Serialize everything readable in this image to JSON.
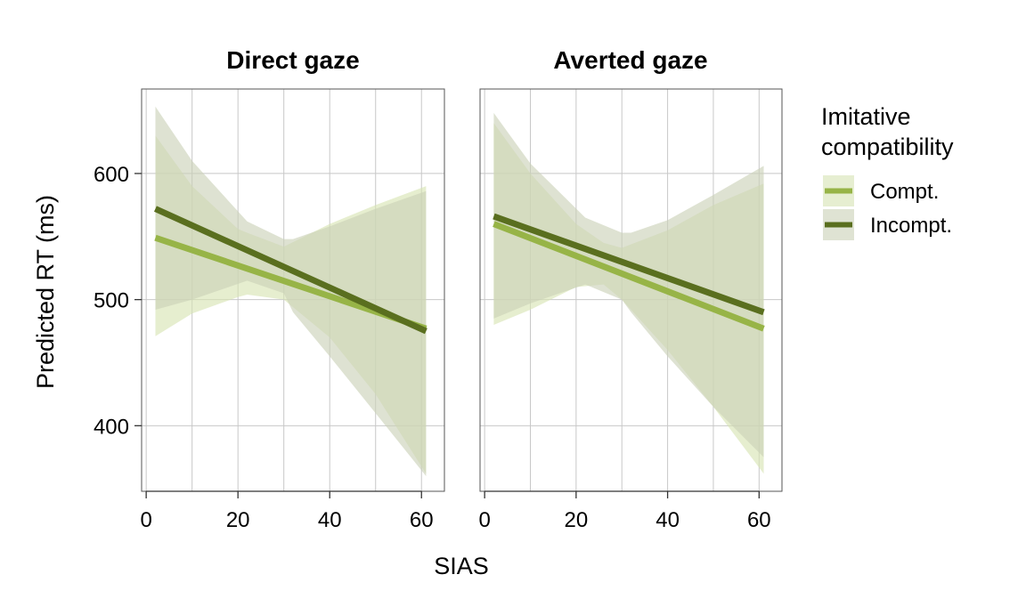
{
  "chart_data": {
    "type": "line",
    "xlabel": "SIAS",
    "ylabel": "Predicted RT (ms)",
    "xlim": [
      -1,
      65
    ],
    "ylim": [
      348,
      667
    ],
    "x_ticks": [
      0,
      20,
      40,
      60
    ],
    "x_minor": [
      10,
      30,
      50
    ],
    "y_ticks": [
      400,
      500,
      600
    ],
    "y_minor": [],
    "grid": true,
    "legend": {
      "title_line1": "Imitative",
      "title_line2": "compatibility",
      "placement": "right",
      "entries": [
        "Compt.",
        "Incompt."
      ]
    },
    "colors": {
      "Compt.": "#97b447",
      "Incompt.": "#5a6f1f",
      "band_Compt.": "#d6e3b2",
      "band_Incompt.": "#c9d1b6"
    },
    "panels": [
      {
        "title": "Direct gaze",
        "series": [
          {
            "name": "Compt.",
            "x": [
              2,
              61
            ],
            "y": [
              549,
              477
            ],
            "band": {
              "x": [
                2,
                10,
                20,
                22,
                30,
                40,
                50,
                61
              ],
              "lower": [
                471,
                489,
                502,
                504,
                500,
                470,
                425,
                362
              ],
              "upper": [
                630,
                590,
                556,
                553,
                542,
                560,
                575,
                590
              ]
            }
          },
          {
            "name": "Incompt.",
            "x": [
              2,
              61
            ],
            "y": [
              572,
              475
            ],
            "band": {
              "x": [
                2,
                10,
                22,
                30,
                32,
                40,
                50,
                61
              ],
              "lower": [
                492,
                500,
                515,
                505,
                490,
                455,
                410,
                360
              ],
              "upper": [
                653,
                610,
                562,
                548,
                548,
                558,
                572,
                586
              ]
            }
          }
        ]
      },
      {
        "title": "Averted gaze",
        "series": [
          {
            "name": "Compt.",
            "x": [
              2,
              61
            ],
            "y": [
              560,
              477
            ],
            "band": {
              "x": [
                2,
                10,
                20,
                26,
                30,
                40,
                50,
                61
              ],
              "lower": [
                480,
                492,
                510,
                512,
                500,
                460,
                415,
                362
              ],
              "upper": [
                640,
                600,
                560,
                545,
                541,
                555,
                575,
                592
              ]
            }
          },
          {
            "name": "Incompt.",
            "x": [
              2,
              61
            ],
            "y": [
              566,
              490
            ],
            "band": {
              "x": [
                2,
                10,
                22,
                30,
                32,
                40,
                50,
                61
              ],
              "lower": [
                485,
                497,
                512,
                500,
                490,
                455,
                415,
                375
              ],
              "upper": [
                648,
                608,
                565,
                553,
                553,
                563,
                583,
                606
              ]
            }
          }
        ]
      }
    ]
  }
}
